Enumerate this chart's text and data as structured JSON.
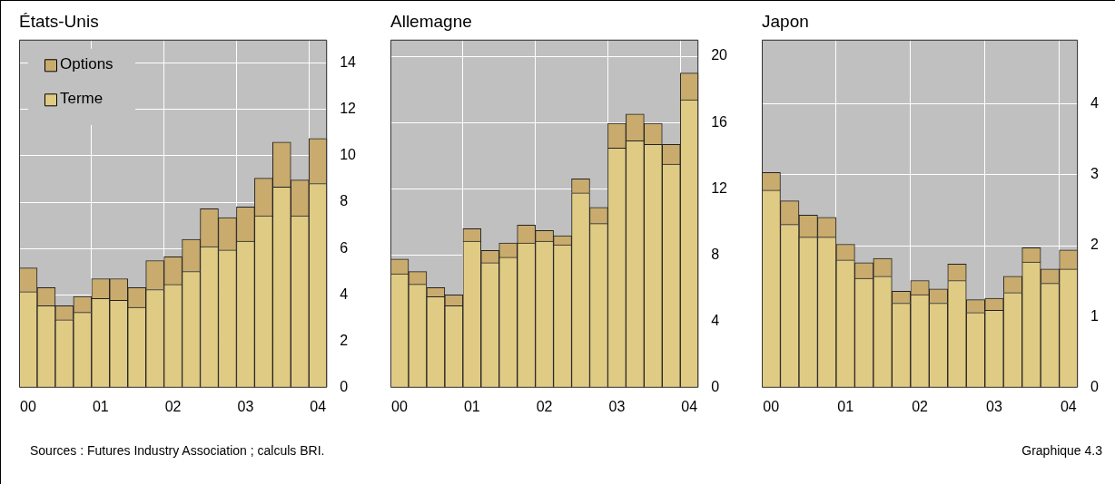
{
  "chart_data": [
    {
      "type": "bar",
      "title": "États-Unis",
      "stacked": true,
      "grid": true,
      "legend": "top left",
      "categories": [
        "00",
        null,
        null,
        null,
        "01",
        null,
        null,
        null,
        "02",
        null,
        null,
        null,
        "03",
        null,
        null,
        null,
        "04"
      ],
      "ylim": [
        0,
        15
      ],
      "yticks": [
        0,
        2,
        4,
        6,
        8,
        10,
        12,
        14
      ],
      "series": [
        {
          "name": "Terme",
          "color": "#e0cb84",
          "values": [
            4.14,
            3.53,
            2.93,
            3.25,
            3.85,
            3.77,
            3.47,
            4.23,
            4.45,
            5.01,
            6.08,
            5.94,
            6.32,
            7.41,
            8.65,
            7.41,
            8.8
          ]
        },
        {
          "name": "Options",
          "color": "#c9ab6e",
          "values": [
            1.02,
            0.79,
            0.6,
            0.68,
            0.85,
            0.93,
            0.85,
            1.25,
            1.19,
            1.39,
            1.63,
            1.39,
            1.47,
            1.62,
            1.93,
            1.54,
            1.94
          ]
        }
      ],
      "annotations": [
        "Sources : Futures Industry Association ; calculs BRI."
      ]
    },
    {
      "type": "bar",
      "title": "Allemagne",
      "stacked": true,
      "grid": true,
      "categories": [
        "00",
        null,
        null,
        null,
        "01",
        null,
        null,
        null,
        "02",
        null,
        null,
        null,
        "03",
        null,
        null,
        null,
        "04"
      ],
      "ylim": [
        0,
        21
      ],
      "yticks": [
        0,
        4,
        8,
        12,
        16,
        20
      ],
      "series": [
        {
          "color": "#e0cb84",
          "values": [
            6.88,
            6.24,
            5.49,
            4.95,
            8.84,
            7.54,
            7.87,
            8.73,
            8.84,
            8.62,
            11.76,
            9.91,
            14.46,
            14.9,
            14.68,
            13.49,
            17.38
          ]
        },
        {
          "color": "#c9ab6e",
          "values": [
            0.88,
            0.77,
            0.55,
            0.65,
            0.76,
            0.75,
            0.86,
            1.09,
            0.65,
            0.55,
            0.85,
            0.97,
            1.5,
            1.61,
            1.28,
            1.19,
            1.61
          ]
        }
      ]
    },
    {
      "type": "bar",
      "title": "Japon",
      "stacked": true,
      "grid": true,
      "categories": [
        "00",
        null,
        null,
        null,
        "01",
        null,
        null,
        null,
        "02",
        null,
        null,
        null,
        "03",
        null,
        null,
        null,
        "04"
      ],
      "ylim": [
        0,
        4.9
      ],
      "yticks": [
        0,
        1,
        2,
        3,
        4
      ],
      "series": [
        {
          "color": "#e0cb84",
          "values": [
            2.78,
            2.3,
            2.12,
            2.12,
            1.8,
            1.54,
            1.57,
            1.19,
            1.31,
            1.19,
            1.51,
            1.06,
            1.09,
            1.34,
            1.77,
            1.47,
            1.67
          ]
        },
        {
          "color": "#c9ab6e",
          "values": [
            0.25,
            0.33,
            0.31,
            0.28,
            0.22,
            0.22,
            0.25,
            0.17,
            0.2,
            0.2,
            0.23,
            0.18,
            0.17,
            0.23,
            0.2,
            0.2,
            0.27
          ]
        }
      ],
      "annotations": [
        "Graphique 4.3"
      ]
    }
  ]
}
